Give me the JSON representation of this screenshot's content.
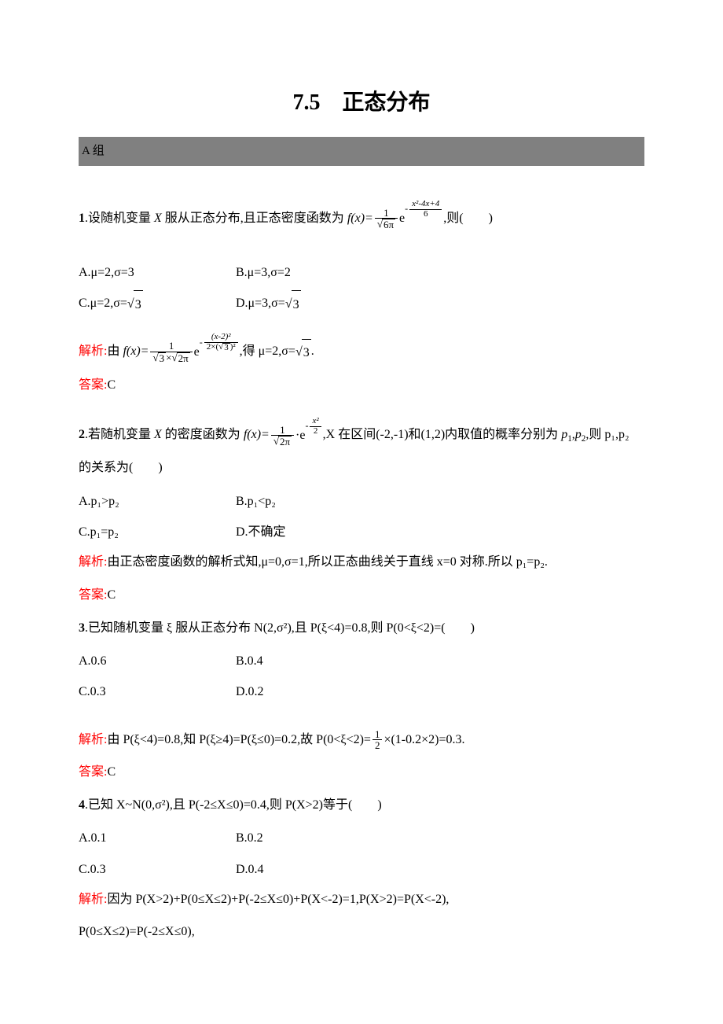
{
  "title": "7.5　正态分布",
  "groupLabel": "A 组",
  "colors": {
    "highlight": "#ff0000",
    "groupBar": "#808080",
    "text": "#000000",
    "bg": "#ffffff"
  },
  "q1": {
    "num": "1",
    "stem_pre": ".设随机变量 ",
    "var": "X",
    "stem_mid": " 服从正态分布,且正态密度函数为 ",
    "fx": "f(x)=",
    "stem_post": ",则(　　)",
    "frac_den": "6π",
    "exp_num": "x²-4x+4",
    "exp_den": "6",
    "optA": "A.μ=2,σ=3",
    "optB": "B.μ=3,σ=2",
    "optC_pre": "C.μ=2,σ=",
    "optC_root": "3",
    "optD_pre": "D.μ=3,σ=",
    "optD_root": "3",
    "sol_label": "解析:",
    "sol_pre": "由 ",
    "sol_fx": "f(x)=",
    "sol_frac_den1": "3",
    "sol_frac_den2": "2π",
    "sol_exp_num": "(x-2)²",
    "sol_exp_den_a": "2×(",
    "sol_exp_den_b": "3",
    "sol_exp_den_c": ")²",
    "sol_mid": ",得 μ=2,σ=",
    "sol_root": "3",
    "sol_end": ".",
    "ans_label": "答案:",
    "ans": "C"
  },
  "q2": {
    "num": "2",
    "stem_pre": ".若随机变量 ",
    "var": "X",
    "stem_mid": " 的密度函数为 ",
    "fx": "f(x)=",
    "frac_den": "2π",
    "exp_num": "x²",
    "exp_den": "2",
    "stem_post1": ",X 在区间(-2,-1)和(1,2)内取值的概率分别为 ",
    "p1": "p₁",
    "p2": "p₂",
    "stem_post2": ",则 p₁,p₂",
    "stem_line2": "的关系为(　　)",
    "optA": "A.p₁>p₂",
    "optB": "B.p₁<p₂",
    "optC": "C.p₁=p₂",
    "optD": "D.不确定",
    "sol_label": "解析:",
    "sol_text": "由正态密度函数的解析式知,μ=0,σ=1,所以正态曲线关于直线 x=0 对称.所以 p₁=p₂.",
    "ans_label": "答案:",
    "ans": "C"
  },
  "q3": {
    "num": "3",
    "stem": ".已知随机变量 ξ 服从正态分布 N(2,σ²),且 P(ξ<4)=0.8,则 P(0<ξ<2)=(　　)",
    "optA": "A.0.6",
    "optB": "B.0.4",
    "optC": "C.0.3",
    "optD": "D.0.2",
    "sol_label": "解析:",
    "sol_pre": "由 P(ξ<4)=0.8,知 P(ξ≥4)=P(ξ≤0)=0.2,故 P(0<ξ<2)=",
    "frac_num": "1",
    "frac_den": "2",
    "sol_post": "×(1-0.2×2)=0.3.",
    "ans_label": "答案:",
    "ans": "C"
  },
  "q4": {
    "num": "4",
    "stem": ".已知 X~N(0,σ²),且 P(-2≤X≤0)=0.4,则 P(X>2)等于(　　)",
    "optA": "A.0.1",
    "optB": "B.0.2",
    "optC": "C.0.3",
    "optD": "D.0.4",
    "sol_label": "解析:",
    "sol_line1": "因为 P(X>2)+P(0≤X≤2)+P(-2≤X≤0)+P(X<-2)=1,P(X>2)=P(X<-2),",
    "sol_line2": "P(0≤X≤2)=P(-2≤X≤0),"
  }
}
